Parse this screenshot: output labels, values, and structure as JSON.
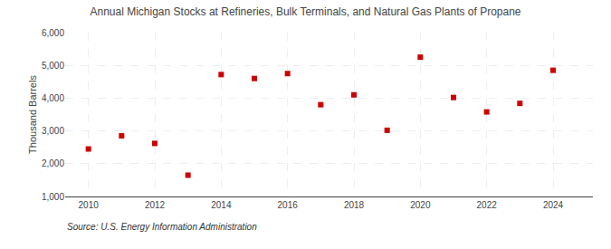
{
  "chart_data": {
    "type": "scatter",
    "title": "Annual Michigan Stocks at Refineries, Bulk Terminals, and Natural Gas Plants of Propane",
    "ylabel": "Thousand Barrels",
    "annotations": [
      "Source: U.S. Energy Information Administration"
    ],
    "x": [
      2010,
      2011,
      2012,
      2013,
      2014,
      2015,
      2016,
      2017,
      2018,
      2019,
      2020,
      2021,
      2022,
      2023,
      2024
    ],
    "values": [
      2450,
      2850,
      2620,
      1650,
      4720,
      4600,
      4750,
      3800,
      4100,
      3020,
      5250,
      4020,
      3580,
      3840,
      4850
    ],
    "color": "#cc0000",
    "marker": "square",
    "xlim": [
      2009.3,
      2025.2
    ],
    "xticks": [
      2010,
      2012,
      2014,
      2016,
      2018,
      2020,
      2022,
      2024
    ],
    "ylim": [
      1000,
      6000
    ],
    "yticks": [
      {
        "value": 1000,
        "label": "1,000"
      },
      {
        "value": 2000,
        "label": "2,000"
      },
      {
        "value": 3000,
        "label": "3,000"
      },
      {
        "value": 4000,
        "label": "4,000"
      },
      {
        "value": 5000,
        "label": "5,000"
      },
      {
        "value": 6000,
        "label": "6,000"
      }
    ],
    "grid": true
  }
}
